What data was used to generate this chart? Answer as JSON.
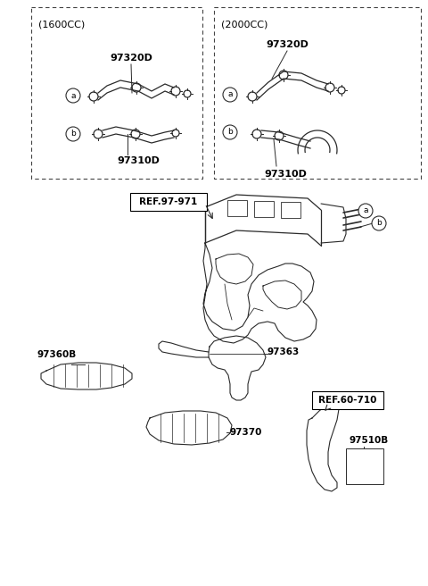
{
  "bg_color": "#ffffff",
  "line_color": "#2a2a2a",
  "box1_label": "(1600CC)",
  "box2_label": "(2000CC)",
  "part_97320D": "97320D",
  "part_97310D": "97310D",
  "part_97363": "97363",
  "part_97360B": "97360B",
  "part_97370": "97370",
  "part_97510B": "97510B",
  "ref_97971": "REF.97-971",
  "ref_60710": "REF.60-710",
  "label_a": "a",
  "label_b": "b"
}
